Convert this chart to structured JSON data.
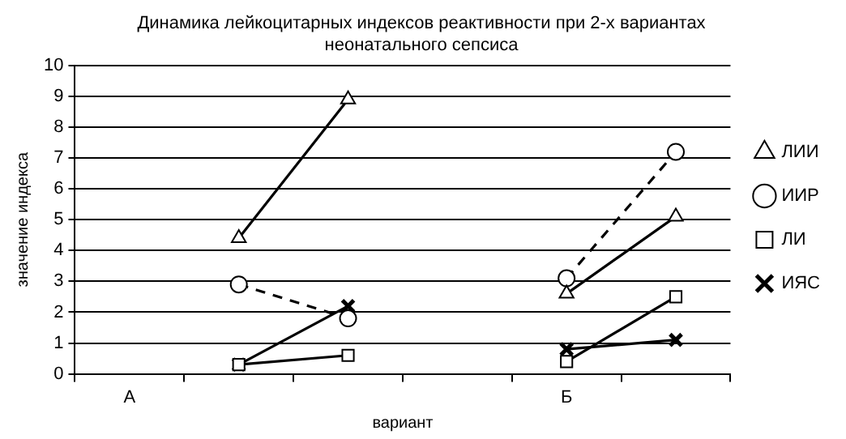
{
  "chart_data": {
    "type": "line",
    "title": "Динамика лейкоцитарных индексов реактивности при 2-х вариантах неонатального сепсиса",
    "xlabel": "вариант",
    "ylabel": "значение индекса",
    "categories": [
      "А",
      null,
      null,
      null,
      "Б",
      null
    ],
    "series": [
      {
        "name": "ЛИИ",
        "color": "#000000",
        "marker": "triangle",
        "line_style": "solid",
        "values": [
          null,
          4.4,
          8.9,
          null,
          2.6,
          5.1
        ]
      },
      {
        "name": "ИИР",
        "color": "#000000",
        "marker": "circle",
        "line_style": "dashed",
        "values": [
          null,
          2.9,
          1.8,
          null,
          3.1,
          7.2
        ]
      },
      {
        "name": "ЛИ",
        "color": "#000000",
        "marker": "square",
        "line_style": "solid",
        "values": [
          null,
          0.3,
          0.6,
          null,
          0.4,
          2.5
        ]
      },
      {
        "name": "ИЯС",
        "color": "#000000",
        "marker": "cross",
        "line_style": "solid",
        "values": [
          null,
          0.3,
          2.2,
          null,
          0.8,
          1.1
        ]
      }
    ],
    "ylim": [
      0,
      10
    ],
    "yticks": [
      0,
      1,
      2,
      3,
      4,
      5,
      6,
      7,
      8,
      9,
      10
    ],
    "grid": "y",
    "legend": "right"
  }
}
